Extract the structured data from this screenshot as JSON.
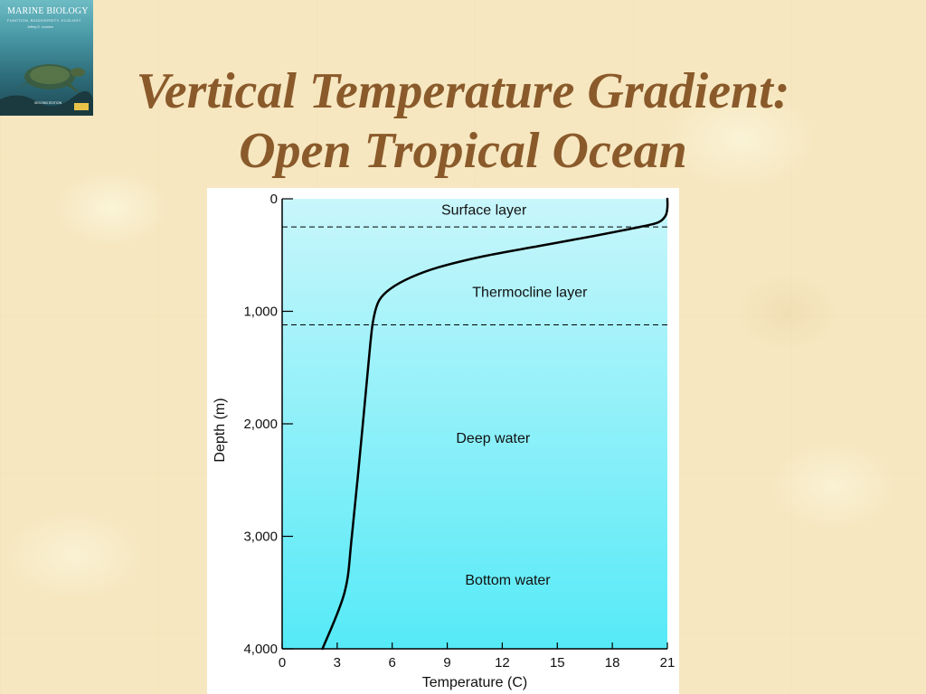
{
  "slide": {
    "title_line1": "Vertical Temperature Gradient:",
    "title_line2": "Open Tropical Ocean"
  },
  "book_cover": {
    "title": "MARINE BIOLOGY",
    "subtitle": "FUNCTION, BIODIVERSITY, ECOLOGY",
    "author": "Jeffrey S. Levinton",
    "edition": "SECOND EDITION"
  },
  "colors": {
    "title": "#8a5a2b",
    "chart_top": "#c8f6fb",
    "chart_bottom": "#55eaf7",
    "background": "#f6e7c0"
  },
  "chart_data": {
    "type": "line",
    "title": "",
    "xlabel": "Temperature (C)",
    "ylabel": "Depth (m)",
    "xlim": [
      0,
      21
    ],
    "ylim": [
      4000,
      0
    ],
    "x_ticks": [
      "0",
      "3",
      "6",
      "9",
      "12",
      "15",
      "18",
      "21"
    ],
    "y_ticks": [
      "0",
      "1,000",
      "2,000",
      "3,000",
      "4,000"
    ],
    "y_tick_values": [
      0,
      1000,
      2000,
      3000,
      4000
    ],
    "series": [
      {
        "points": [
          [
            21.0,
            0
          ],
          [
            21.0,
            80
          ],
          [
            20.9,
            150
          ],
          [
            20.5,
            210
          ],
          [
            19.5,
            250
          ],
          [
            17.0,
            330
          ],
          [
            14.0,
            420
          ],
          [
            11.0,
            510
          ],
          [
            8.5,
            610
          ],
          [
            7.0,
            700
          ],
          [
            5.9,
            800
          ],
          [
            5.3,
            900
          ],
          [
            5.0,
            1050
          ],
          [
            4.8,
            1300
          ],
          [
            4.4,
            2000
          ],
          [
            3.8,
            3000
          ],
          [
            3.4,
            3500
          ],
          [
            2.2,
            4000
          ]
        ]
      }
    ],
    "boundaries": [
      {
        "depth": 250,
        "style": "dashed"
      },
      {
        "depth": 1120,
        "style": "dashed"
      }
    ],
    "annotations": [
      {
        "text": "Surface layer",
        "x": 11.0,
        "y": 140
      },
      {
        "text": "Thermocline layer",
        "x": 13.5,
        "y": 870
      },
      {
        "text": "Deep water",
        "x": 11.5,
        "y": 2170
      },
      {
        "text": "Bottom water",
        "x": 12.3,
        "y": 3430
      }
    ]
  }
}
